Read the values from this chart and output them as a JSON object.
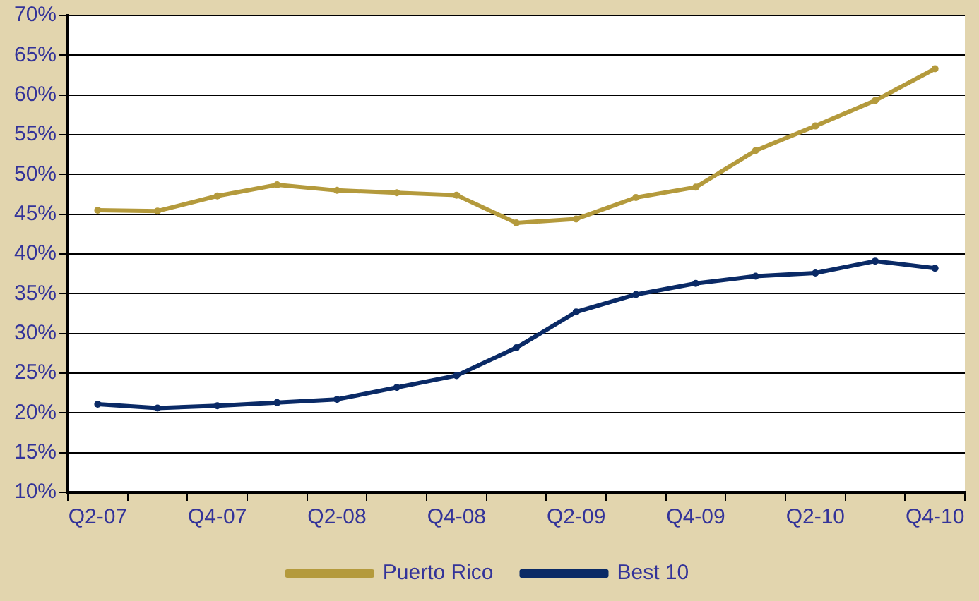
{
  "chart_data": {
    "type": "line",
    "categories": [
      "Q2-07",
      null,
      "Q4-07",
      null,
      "Q2-08",
      null,
      "Q4-08",
      null,
      "Q2-09",
      null,
      "Q4-09",
      null,
      "Q2-10",
      null,
      "Q4-10"
    ],
    "series": [
      {
        "name": "Puerto Rico",
        "color": "#b49a3c",
        "values": [
          45.5,
          45.4,
          47.3,
          48.7,
          48.0,
          47.7,
          47.4,
          43.9,
          44.4,
          47.1,
          48.4,
          53.0,
          56.1,
          59.3,
          63.3
        ]
      },
      {
        "name": "Best 10",
        "color": "#0a2a66",
        "values": [
          21.1,
          20.6,
          20.9,
          21.3,
          21.7,
          23.2,
          24.7,
          28.2,
          32.7,
          34.9,
          36.3,
          37.2,
          37.6,
          39.1,
          38.2
        ]
      }
    ],
    "ylim": [
      10,
      70
    ],
    "yticks": [
      {
        "value": 10,
        "label": "10%"
      },
      {
        "value": 15,
        "label": "15%"
      },
      {
        "value": 20,
        "label": "20%"
      },
      {
        "value": 25,
        "label": "25%"
      },
      {
        "value": 30,
        "label": "30%"
      },
      {
        "value": 35,
        "label": "35%"
      },
      {
        "value": 40,
        "label": "40%"
      },
      {
        "value": 45,
        "label": "45%"
      },
      {
        "value": 50,
        "label": "50%"
      },
      {
        "value": 55,
        "label": "55%"
      },
      {
        "value": 60,
        "label": "60%"
      },
      {
        "value": 65,
        "label": "65%"
      },
      {
        "value": 70,
        "label": "70%"
      }
    ],
    "grid": "y",
    "legend": "bottom",
    "marker": "circle",
    "line_style": "solid"
  }
}
